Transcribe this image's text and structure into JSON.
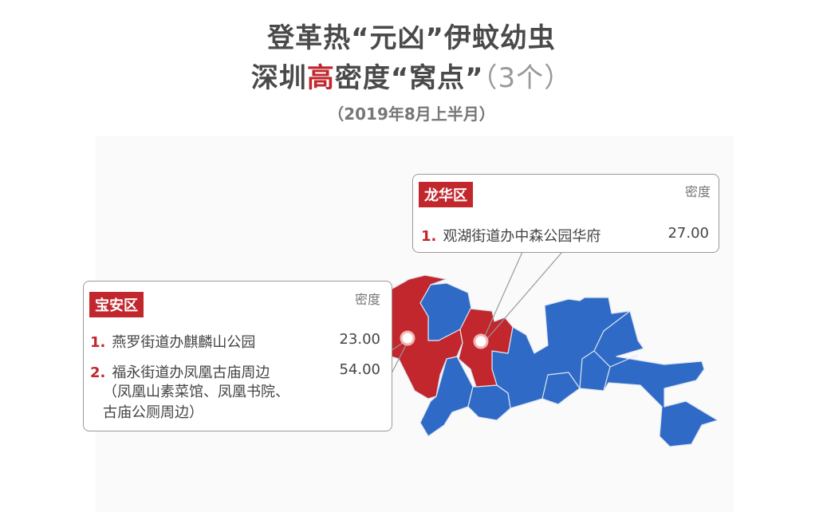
{
  "title": {
    "line1": "登革热“元凶”伊蚊幼虫",
    "line2_pre": "深圳",
    "line2_highlight": "高",
    "line2_post": "密度“窝点”",
    "count": "（3个）"
  },
  "subtitle": "（2019年8月上半月）",
  "colors": {
    "high": "#c1272d",
    "normal": "#2f6bc6"
  },
  "callouts": [
    {
      "district": "龙华区",
      "density_label": "密度",
      "items": [
        {
          "rank": "1.",
          "name": "观湖街道办中森公园华府",
          "density": "27.00"
        }
      ]
    },
    {
      "district": "宝安区",
      "density_label": "密度",
      "items": [
        {
          "rank": "1.",
          "name": "燕罗街道办麒麟山公园",
          "density": "23.00"
        },
        {
          "rank": "2.",
          "name": "福永街道办凤凰古庙周边",
          "density": "54.00",
          "note_line1": "（凤凰山素菜馆、凤凰书院、",
          "note_line2": "古庙公厕周边）"
        }
      ]
    }
  ]
}
